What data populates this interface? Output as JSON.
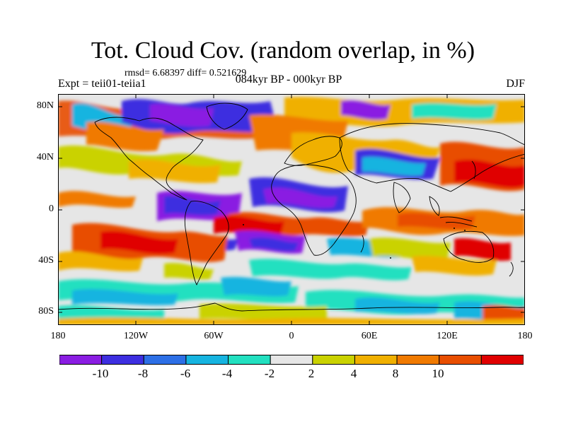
{
  "title": "Tot. Cloud Cov. (random overlap, in %)",
  "stats": "rmsd= 6.68397 diff= 0.521629",
  "experiment": "Expt = teii01-teiia1",
  "period": "084kyr BP - 000kyr BP",
  "season": "DJF",
  "lat_labels": [
    "80N",
    "40N",
    "0",
    "40S",
    "80S"
  ],
  "lon_labels": [
    "180",
    "120W",
    "60W",
    "0",
    "60E",
    "120E",
    "180"
  ],
  "colorbar": {
    "labels": [
      "-10",
      "-8",
      "-6",
      "-4",
      "-2",
      "2",
      "4",
      "8",
      "10"
    ],
    "colors": [
      "#8a1de2",
      "#3d2ee0",
      "#2d6fe6",
      "#16b4e0",
      "#22e0c0",
      "#e6e6e6",
      "#cad200",
      "#f0b000",
      "#f07a00",
      "#e84e00",
      "#e00000"
    ]
  }
}
